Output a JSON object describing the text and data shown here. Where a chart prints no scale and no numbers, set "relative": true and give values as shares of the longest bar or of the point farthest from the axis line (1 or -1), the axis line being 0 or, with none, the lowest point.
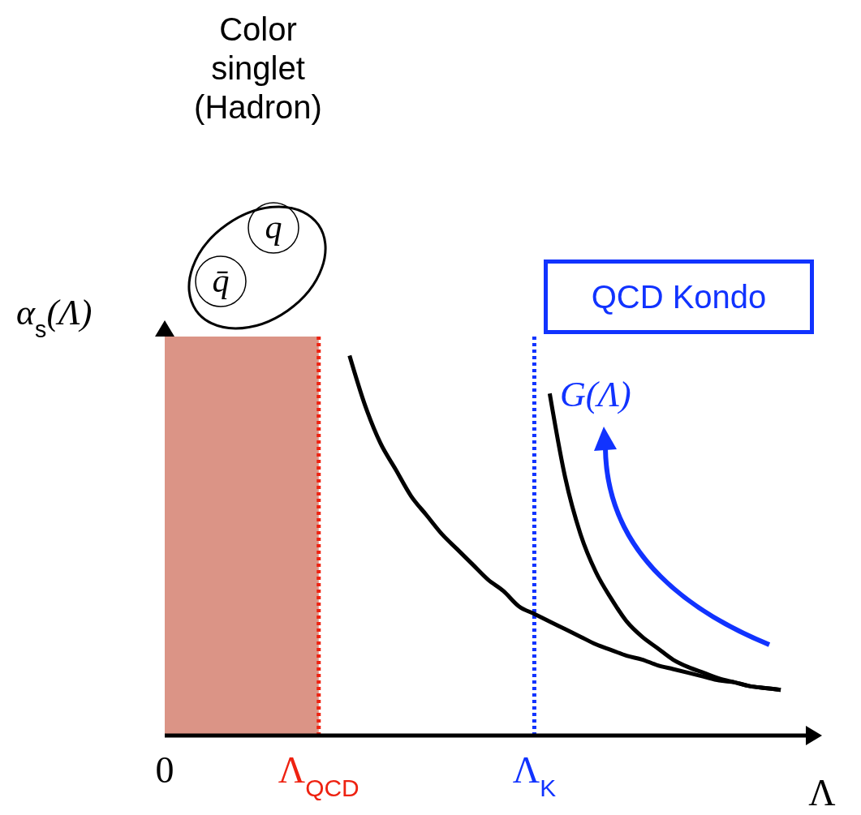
{
  "chart_data": {
    "type": "line",
    "relative": true,
    "xlabel": "Λ",
    "ylabel": "α$_{s}$(Λ)",
    "categories": [
      "0",
      null,
      null,
      null,
      null,
      null,
      null,
      null,
      null,
      null,
      "Λ$_{QCD}$",
      null,
      null,
      null,
      null,
      null,
      null,
      null,
      null,
      null,
      null,
      null,
      null,
      null,
      "Λ$_{K}$",
      null,
      null,
      null,
      null,
      null,
      null,
      null,
      null,
      null,
      null,
      null,
      null,
      null,
      null,
      null,
      null,
      null,
      null
    ],
    "series": [
      {
        "color": "#000000",
        "values": [
          null,
          null,
          null,
          null,
          null,
          null,
          null,
          null,
          null,
          null,
          null,
          null,
          1,
          0.87,
          0.77,
          0.7,
          0.63,
          0.58,
          0.53,
          0.49,
          0.45,
          0.41,
          0.38,
          0.34,
          0.32,
          0.3,
          0.28,
          0.26,
          0.24,
          0.225,
          0.21,
          0.2,
          0.185,
          0.175,
          0.165,
          0.155,
          0.145,
          0.14,
          0.13,
          0.125,
          0.12,
          null,
          null
        ]
      },
      {
        "color": "#000000",
        "values": [
          null,
          null,
          null,
          null,
          null,
          null,
          null,
          null,
          null,
          null,
          null,
          null,
          null,
          null,
          null,
          null,
          null,
          null,
          null,
          null,
          null,
          null,
          null,
          null,
          null,
          0.9,
          0.68,
          0.53,
          0.43,
          0.36,
          0.3,
          0.26,
          0.23,
          0.2,
          0.18,
          0.165,
          0.15,
          0.14,
          0.13,
          0.125,
          0.12,
          null,
          null
        ]
      }
    ],
    "bands": [
      {
        "axis": "x",
        "from": "0",
        "to": "Λ$_{QCD}$",
        "color": "#c75a45"
      }
    ],
    "ref_lines": [
      {
        "axis": "x",
        "value": "Λ$_{QCD}$",
        "color": "#ee2211",
        "line_style": "dotted"
      },
      {
        "axis": "x",
        "value": "Λ$_{K}$",
        "color": "#1133ff",
        "line_style": "dotted"
      }
    ],
    "annotations": [
      "Color singlet (Hadron)",
      "q",
      "q̄",
      "QCD Kondo",
      "G(Λ)"
    ],
    "marker": "none",
    "line_style": "solid"
  }
}
